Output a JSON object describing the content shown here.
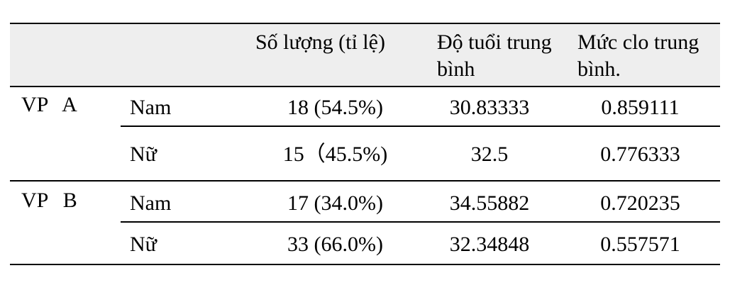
{
  "table": {
    "header": [
      "Số lượng (tỉ lệ)",
      "Độ tuổi trung bình",
      "Mức clo trung bình."
    ],
    "groups": [
      {
        "label": "VP A",
        "rows": [
          [
            "Nam",
            "18 (54.5%)",
            "30.83333",
            "0.859111"
          ],
          [
            "Nữ",
            "15（45.5%)",
            "32.5",
            "0.776333"
          ]
        ]
      },
      {
        "label": "VP B",
        "rows": [
          [
            "Nam",
            "17 (34.0%)",
            "34.55882",
            "0.720235"
          ],
          [
            "Nữ",
            "33 (66.0%)",
            "32.34848",
            "0.557571"
          ]
        ]
      }
    ]
  }
}
